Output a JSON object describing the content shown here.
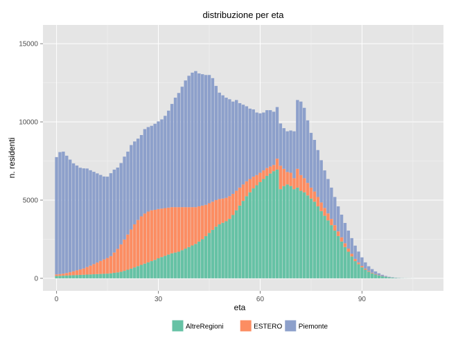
{
  "chart_data": {
    "type": "bar",
    "stacked": true,
    "title": "distribuzione per eta",
    "xlabel": "eta",
    "ylabel": "n. residenti",
    "xlim": [
      -4,
      114
    ],
    "ylim": [
      -800,
      16200
    ],
    "x_ticks": [
      0,
      30,
      60,
      90
    ],
    "y_ticks": [
      0,
      5000,
      10000,
      15000
    ],
    "grid": true,
    "legend_position": "bottom",
    "legend_title": "",
    "x": [
      0,
      1,
      2,
      3,
      4,
      5,
      6,
      7,
      8,
      9,
      10,
      11,
      12,
      13,
      14,
      15,
      16,
      17,
      18,
      19,
      20,
      21,
      22,
      23,
      24,
      25,
      26,
      27,
      28,
      29,
      30,
      31,
      32,
      33,
      34,
      35,
      36,
      37,
      38,
      39,
      40,
      41,
      42,
      43,
      44,
      45,
      46,
      47,
      48,
      49,
      50,
      51,
      52,
      53,
      54,
      55,
      56,
      57,
      58,
      59,
      60,
      61,
      62,
      63,
      64,
      65,
      66,
      67,
      68,
      69,
      70,
      71,
      72,
      73,
      74,
      75,
      76,
      77,
      78,
      79,
      80,
      81,
      82,
      83,
      84,
      85,
      86,
      87,
      88,
      89,
      90,
      91,
      92,
      93,
      94,
      95,
      96,
      97,
      98,
      99,
      100,
      101,
      102,
      103,
      104,
      105
    ],
    "series": [
      {
        "name": "AltreRegioni",
        "color": "#66c2a5",
        "values": [
          150,
          160,
          170,
          180,
          190,
          200,
          210,
          220,
          230,
          240,
          250,
          260,
          270,
          280,
          290,
          300,
          320,
          350,
          380,
          420,
          480,
          550,
          620,
          700,
          780,
          860,
          940,
          1020,
          1100,
          1180,
          1280,
          1360,
          1440,
          1520,
          1600,
          1650,
          1700,
          1800,
          1900,
          2000,
          2100,
          2200,
          2350,
          2500,
          2700,
          2900,
          3100,
          3300,
          3450,
          3550,
          3650,
          3800,
          4050,
          4350,
          4650,
          4950,
          5250,
          5500,
          5750,
          5950,
          6150,
          6350,
          6550,
          6700,
          6850,
          6950,
          5700,
          5900,
          6000,
          5900,
          5700,
          5800,
          5600,
          5500,
          5300,
          5100,
          4900,
          4600,
          4300,
          4000,
          3700,
          3400,
          3050,
          2700,
          2350,
          2000,
          1700,
          1400,
          1100,
          900,
          700,
          550,
          420,
          320,
          240,
          180,
          130,
          90,
          60,
          40,
          25,
          15,
          10,
          6,
          4,
          2
        ]
      },
      {
        "name": "ESTERO",
        "color": "#fc8d62",
        "values": [
          100,
          110,
          130,
          160,
          200,
          250,
          300,
          350,
          400,
          480,
          560,
          650,
          740,
          830,
          920,
          1000,
          1100,
          1300,
          1500,
          1750,
          2000,
          2250,
          2500,
          2750,
          2950,
          3100,
          3200,
          3250,
          3250,
          3200,
          3150,
          3100,
          3050,
          3000,
          2950,
          2900,
          2850,
          2750,
          2650,
          2550,
          2450,
          2350,
          2250,
          2150,
          2000,
          1900,
          1800,
          1700,
          1620,
          1550,
          1500,
          1450,
          1350,
          1250,
          1150,
          1050,
          950,
          850,
          750,
          650,
          600,
          550,
          500,
          450,
          400,
          700,
          1500,
          1100,
          800,
          850,
          700,
          1200,
          1000,
          900,
          800,
          700,
          650,
          600,
          550,
          500,
          450,
          400,
          350,
          300,
          270,
          240,
          200,
          170,
          140,
          110,
          90,
          70,
          50,
          40,
          30,
          20,
          15,
          10,
          8,
          5,
          3,
          2,
          1,
          1,
          1,
          0
        ]
      },
      {
        "name": "Piemonte",
        "color": "#8da0cb",
        "values": [
          7500,
          7800,
          7800,
          7500,
          7200,
          6900,
          6700,
          6500,
          6400,
          6300,
          6100,
          5900,
          5700,
          5500,
          5300,
          5200,
          5300,
          5300,
          5200,
          5200,
          5300,
          5300,
          5400,
          5300,
          5200,
          5200,
          5400,
          5400,
          5400,
          5500,
          5600,
          5700,
          5900,
          6200,
          6600,
          7000,
          7300,
          7700,
          8100,
          8400,
          8600,
          8700,
          8500,
          8400,
          8300,
          8200,
          7900,
          7300,
          6800,
          6600,
          6400,
          6200,
          5900,
          5800,
          5400,
          5100,
          4800,
          4500,
          4300,
          4000,
          3800,
          3700,
          3700,
          3600,
          3400,
          3300,
          2700,
          2600,
          2600,
          2700,
          3000,
          4400,
          4700,
          4500,
          4000,
          3500,
          3300,
          3000,
          2700,
          2400,
          2200,
          2000,
          1800,
          1600,
          1450,
          1300,
          1150,
          1000,
          850,
          700,
          550,
          400,
          300,
          230,
          170,
          120,
          80,
          50,
          30,
          20,
          12,
          8,
          4,
          2,
          1,
          1
        ]
      }
    ]
  }
}
